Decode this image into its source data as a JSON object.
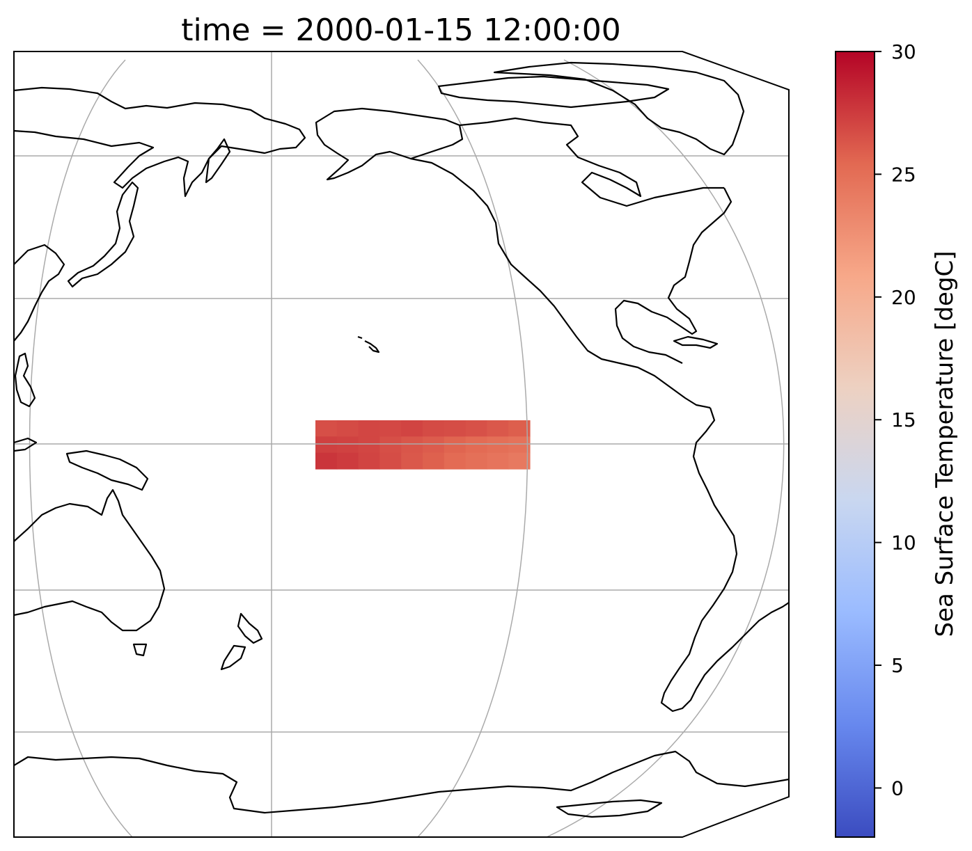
{
  "title": "time = 2000-01-15 12:00:00",
  "colorbar": {
    "label": "Sea Surface Temperature [degC]",
    "colormap": "coolwarm",
    "vmin": -2,
    "vmax": 30,
    "ticks": [
      0,
      5,
      10,
      15,
      20,
      25,
      30
    ],
    "tick_labels": [
      "0",
      "5",
      "10",
      "15",
      "20",
      "25",
      "30"
    ],
    "colors": [
      "#3b4cc0",
      "#6788ee",
      "#9abbff",
      "#c9d7f0",
      "#edd1c2",
      "#f7a889",
      "#e26952",
      "#b40426"
    ]
  },
  "map": {
    "projection": "pacific-centered",
    "gridlines": true,
    "data_region": {
      "description_lon_range": [
        -170,
        -120
      ],
      "lat_range": [
        -5,
        5
      ],
      "values_rows": [
        [
          26.6,
          26.8,
          27.0,
          26.9,
          27.1,
          26.8,
          26.7,
          26.5,
          26.2,
          25.9
        ],
        [
          27.3,
          27.2,
          27.0,
          26.6,
          26.3,
          26.0,
          25.6,
          25.3,
          25.0,
          24.8
        ],
        [
          27.8,
          27.5,
          27.1,
          26.7,
          26.2,
          25.8,
          25.3,
          24.9,
          24.6,
          24.3
        ]
      ]
    }
  }
}
